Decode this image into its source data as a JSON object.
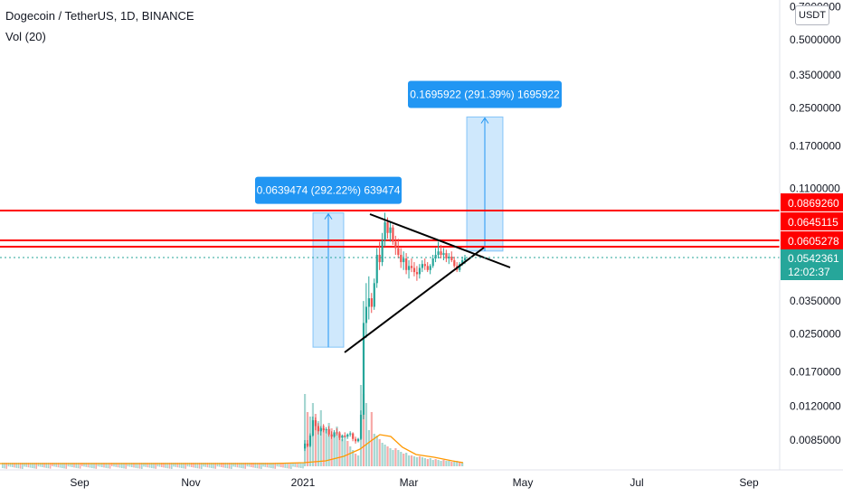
{
  "header": {
    "symbol_title": "Dogecoin / TetherUS, 1D, BINANCE",
    "volume_indicator": "Vol (20)"
  },
  "price_axis": {
    "unit": "USDT",
    "scale": "log",
    "tick_labels": [
      "0.7000000",
      "0.5000000",
      "0.3500000",
      "0.2500000",
      "0.1700000",
      "0.1100000",
      "0.0350000",
      "0.0250000",
      "0.0170000",
      "0.0120000",
      "0.0085000"
    ],
    "tick_values": [
      0.7,
      0.5,
      0.35,
      0.25,
      0.17,
      0.11,
      0.035,
      0.025,
      0.017,
      0.012,
      0.0085
    ]
  },
  "time_axis": {
    "labels": [
      "Sep",
      "Nov",
      "2021",
      "Mar",
      "May",
      "Jul",
      "Sep"
    ]
  },
  "colors": {
    "up": "#26a69a",
    "down": "#ef5350",
    "level_line": "#ff0000",
    "measure_fill": "#bbdefb",
    "measure_border": "#2196f3",
    "measure_label_bg": "#2196f3",
    "triangle_line": "#000000",
    "current_price_bg": "#26a69a",
    "volume_ma": "#ff9800"
  },
  "chart_data": {
    "type": "candlestick",
    "y_scale": "log",
    "horizontal_levels": [
      {
        "label": "0.0869260",
        "value": 0.086926
      },
      {
        "label": "0.0645115",
        "value": 0.0645115
      },
      {
        "label": "0.0605278",
        "value": 0.0605278
      }
    ],
    "current_price": {
      "label": "0.0542361",
      "value": 0.0542361,
      "countdown": "12:02:37"
    },
    "measures": [
      {
        "label": "0.0639474 (292.22%) 639474",
        "from": 0.02188,
        "to": 0.08583
      },
      {
        "label": "0.1695922 (291.39%) 1695922",
        "from": 0.0582,
        "to": 0.2278
      }
    ],
    "candles": [
      [
        0.0078,
        0.0085,
        0.0076,
        0.0082
      ],
      [
        0.0082,
        0.0085,
        0.0079,
        0.008
      ],
      [
        0.008,
        0.0091,
        0.0079,
        0.0089
      ],
      [
        0.0089,
        0.0108,
        0.0088,
        0.0104
      ],
      [
        0.0104,
        0.0107,
        0.0094,
        0.0098
      ],
      [
        0.0098,
        0.0101,
        0.009,
        0.0093
      ],
      [
        0.0093,
        0.0098,
        0.0089,
        0.0096
      ],
      [
        0.0096,
        0.01,
        0.0092,
        0.0094
      ],
      [
        0.0094,
        0.0097,
        0.0091,
        0.0095
      ],
      [
        0.0095,
        0.0098,
        0.0088,
        0.009
      ],
      [
        0.009,
        0.0093,
        0.0086,
        0.0088
      ],
      [
        0.0088,
        0.0094,
        0.0087,
        0.0092
      ],
      [
        0.0092,
        0.0096,
        0.0089,
        0.0091
      ],
      [
        0.0091,
        0.0093,
        0.0085,
        0.0087
      ],
      [
        0.0087,
        0.009,
        0.0084,
        0.0089
      ],
      [
        0.0089,
        0.0092,
        0.0087,
        0.0088
      ],
      [
        0.0088,
        0.0091,
        0.0086,
        0.009
      ],
      [
        0.009,
        0.0093,
        0.0088,
        0.0091
      ],
      [
        0.0091,
        0.0092,
        0.0084,
        0.0086
      ],
      [
        0.0086,
        0.0088,
        0.0082,
        0.0084
      ],
      [
        0.0084,
        0.0087,
        0.0083,
        0.0086
      ],
      [
        0.0086,
        0.0115,
        0.0085,
        0.011
      ],
      [
        0.011,
        0.035,
        0.0105,
        0.028
      ],
      [
        0.028,
        0.042,
        0.024,
        0.033
      ],
      [
        0.033,
        0.045,
        0.029,
        0.036
      ],
      [
        0.036,
        0.038,
        0.031,
        0.033
      ],
      [
        0.033,
        0.044,
        0.032,
        0.042
      ],
      [
        0.042,
        0.06,
        0.04,
        0.056
      ],
      [
        0.056,
        0.064,
        0.048,
        0.052
      ],
      [
        0.052,
        0.07,
        0.05,
        0.065
      ],
      [
        0.065,
        0.086,
        0.061,
        0.078
      ],
      [
        0.078,
        0.082,
        0.066,
        0.07
      ],
      [
        0.07,
        0.079,
        0.064,
        0.074
      ],
      [
        0.074,
        0.076,
        0.062,
        0.064
      ],
      [
        0.064,
        0.068,
        0.056,
        0.06
      ],
      [
        0.06,
        0.066,
        0.054,
        0.056
      ],
      [
        0.056,
        0.06,
        0.049,
        0.052
      ],
      [
        0.052,
        0.058,
        0.048,
        0.054
      ],
      [
        0.054,
        0.057,
        0.046,
        0.048
      ],
      [
        0.048,
        0.053,
        0.044,
        0.05
      ],
      [
        0.05,
        0.054,
        0.047,
        0.049
      ],
      [
        0.049,
        0.052,
        0.045,
        0.047
      ],
      [
        0.047,
        0.05,
        0.043,
        0.046
      ],
      [
        0.046,
        0.051,
        0.044,
        0.049
      ],
      [
        0.049,
        0.053,
        0.047,
        0.051
      ],
      [
        0.051,
        0.054,
        0.048,
        0.05
      ],
      [
        0.05,
        0.052,
        0.047,
        0.048
      ],
      [
        0.048,
        0.051,
        0.046,
        0.05
      ],
      [
        0.05,
        0.056,
        0.049,
        0.054
      ],
      [
        0.054,
        0.06,
        0.052,
        0.056
      ],
      [
        0.056,
        0.064,
        0.054,
        0.058
      ],
      [
        0.058,
        0.062,
        0.054,
        0.056
      ],
      [
        0.056,
        0.06,
        0.053,
        0.057
      ],
      [
        0.057,
        0.059,
        0.052,
        0.054
      ],
      [
        0.054,
        0.057,
        0.051,
        0.055
      ],
      [
        0.055,
        0.058,
        0.052,
        0.053
      ],
      [
        0.053,
        0.055,
        0.049,
        0.05
      ],
      [
        0.05,
        0.052,
        0.047,
        0.048
      ],
      [
        0.048,
        0.052,
        0.047,
        0.051
      ],
      [
        0.051,
        0.055,
        0.05,
        0.053
      ],
      [
        0.053,
        0.056,
        0.051,
        0.0542
      ]
    ]
  }
}
